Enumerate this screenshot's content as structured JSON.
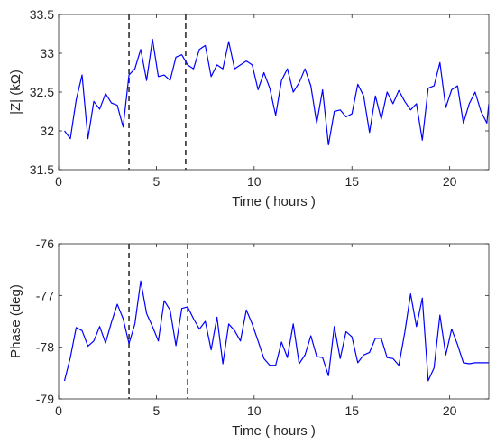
{
  "chart_data": [
    {
      "type": "line",
      "xlabel": "Time ( hours )",
      "ylabel": "|Z| (kΩ)",
      "xlim": [
        0,
        22
      ],
      "ylim": [
        31.5,
        33.5
      ],
      "xticks": [
        0,
        5,
        10,
        15,
        20
      ],
      "xtick_labels": [
        "0",
        "5",
        "10",
        "15",
        "20"
      ],
      "yticks": [
        31.5,
        32,
        32.5,
        33,
        33.5
      ],
      "ytick_labels": [
        "31.5",
        "32",
        "32.5",
        "33",
        "33.5"
      ],
      "grid": false,
      "legend": "none",
      "vlines": [
        3.6,
        6.5
      ],
      "series": [
        {
          "color": "#0000ff",
          "x": [
            0.3,
            0.6,
            0.9,
            1.2,
            1.5,
            1.8,
            2.1,
            2.4,
            2.7,
            3.0,
            3.3,
            3.6,
            3.9,
            4.2,
            4.5,
            4.8,
            5.1,
            5.4,
            5.7,
            6.0,
            6.3,
            6.6,
            6.9,
            7.2,
            7.5,
            7.8,
            8.1,
            8.4,
            8.7,
            9.0,
            9.3,
            9.6,
            9.9,
            10.2,
            10.5,
            10.8,
            11.1,
            11.4,
            11.7,
            12.0,
            12.3,
            12.6,
            12.9,
            13.2,
            13.5,
            13.8,
            14.1,
            14.4,
            14.7,
            15.0,
            15.3,
            15.6,
            15.9,
            16.2,
            16.5,
            16.8,
            17.1,
            17.4,
            17.7,
            18.0,
            18.3,
            18.6,
            18.9,
            19.2,
            19.5,
            19.8,
            20.1,
            20.4,
            20.7,
            21.0,
            21.3,
            21.6,
            21.9,
            22.0
          ],
          "y": [
            32.0,
            31.9,
            32.4,
            32.72,
            31.9,
            32.38,
            32.28,
            32.48,
            32.36,
            32.33,
            32.05,
            32.72,
            32.8,
            33.05,
            32.65,
            33.18,
            32.7,
            32.72,
            32.65,
            32.95,
            32.98,
            32.85,
            32.8,
            33.05,
            33.1,
            32.7,
            32.85,
            32.8,
            33.15,
            32.8,
            32.85,
            32.9,
            32.85,
            32.53,
            32.75,
            32.55,
            32.2,
            32.65,
            32.8,
            32.5,
            32.62,
            32.8,
            32.58,
            32.1,
            32.53,
            31.82,
            32.25,
            32.27,
            32.18,
            32.22,
            32.6,
            32.45,
            31.98,
            32.45,
            32.15,
            32.5,
            32.35,
            32.52,
            32.38,
            32.27,
            32.35,
            31.88,
            32.55,
            32.58,
            32.88,
            32.3,
            32.53,
            32.58,
            32.1,
            32.35,
            32.5,
            32.25,
            32.1,
            32.35
          ]
        }
      ]
    },
    {
      "type": "line",
      "xlabel": "Time ( hours )",
      "ylabel": "Phase (deg)",
      "xlim": [
        0,
        22
      ],
      "ylim": [
        -79,
        -76
      ],
      "xticks": [
        0,
        5,
        10,
        15,
        20
      ],
      "xtick_labels": [
        "0",
        "5",
        "10",
        "15",
        "20"
      ],
      "yticks": [
        -79,
        -78,
        -77,
        -76
      ],
      "ytick_labels": [
        "-79",
        "-78",
        "-77",
        "-76"
      ],
      "grid": false,
      "legend": "none",
      "vlines": [
        3.6,
        6.6
      ],
      "series": [
        {
          "color": "#0000ff",
          "x": [
            0.3,
            0.6,
            0.9,
            1.2,
            1.5,
            1.8,
            2.1,
            2.4,
            2.7,
            3.0,
            3.3,
            3.6,
            3.9,
            4.2,
            4.5,
            4.8,
            5.1,
            5.4,
            5.7,
            6.0,
            6.3,
            6.6,
            6.9,
            7.2,
            7.5,
            7.8,
            8.1,
            8.4,
            8.7,
            9.0,
            9.3,
            9.6,
            9.9,
            10.2,
            10.5,
            10.8,
            11.1,
            11.4,
            11.7,
            12.0,
            12.3,
            12.6,
            12.9,
            13.2,
            13.5,
            13.8,
            14.1,
            14.4,
            14.7,
            15.0,
            15.3,
            15.6,
            15.9,
            16.2,
            16.5,
            16.8,
            17.1,
            17.4,
            17.7,
            18.0,
            18.3,
            18.6,
            18.9,
            19.2,
            19.5,
            19.8,
            20.1,
            20.4,
            20.7,
            21.0,
            21.3,
            21.6,
            21.9,
            22.0
          ],
          "y": [
            -78.65,
            -78.2,
            -77.62,
            -77.68,
            -77.98,
            -77.88,
            -77.6,
            -77.92,
            -77.52,
            -77.17,
            -77.45,
            -77.93,
            -77.55,
            -76.72,
            -77.35,
            -77.6,
            -77.88,
            -77.1,
            -77.28,
            -77.97,
            -77.25,
            -77.22,
            -77.45,
            -77.65,
            -77.5,
            -78.05,
            -77.42,
            -78.32,
            -77.55,
            -77.68,
            -77.88,
            -77.28,
            -77.55,
            -77.88,
            -78.22,
            -78.35,
            -78.35,
            -77.9,
            -78.2,
            -77.55,
            -78.32,
            -78.15,
            -77.78,
            -78.18,
            -78.2,
            -78.55,
            -77.6,
            -78.22,
            -77.7,
            -77.8,
            -78.3,
            -78.15,
            -78.1,
            -77.83,
            -77.83,
            -78.2,
            -78.22,
            -78.35,
            -77.72,
            -76.97,
            -77.6,
            -77.05,
            -78.65,
            -78.4,
            -77.38,
            -78.15,
            -77.65,
            -77.95,
            -78.3,
            -78.32,
            -78.3,
            -78.3,
            -78.3,
            -78.3
          ]
        }
      ]
    }
  ]
}
